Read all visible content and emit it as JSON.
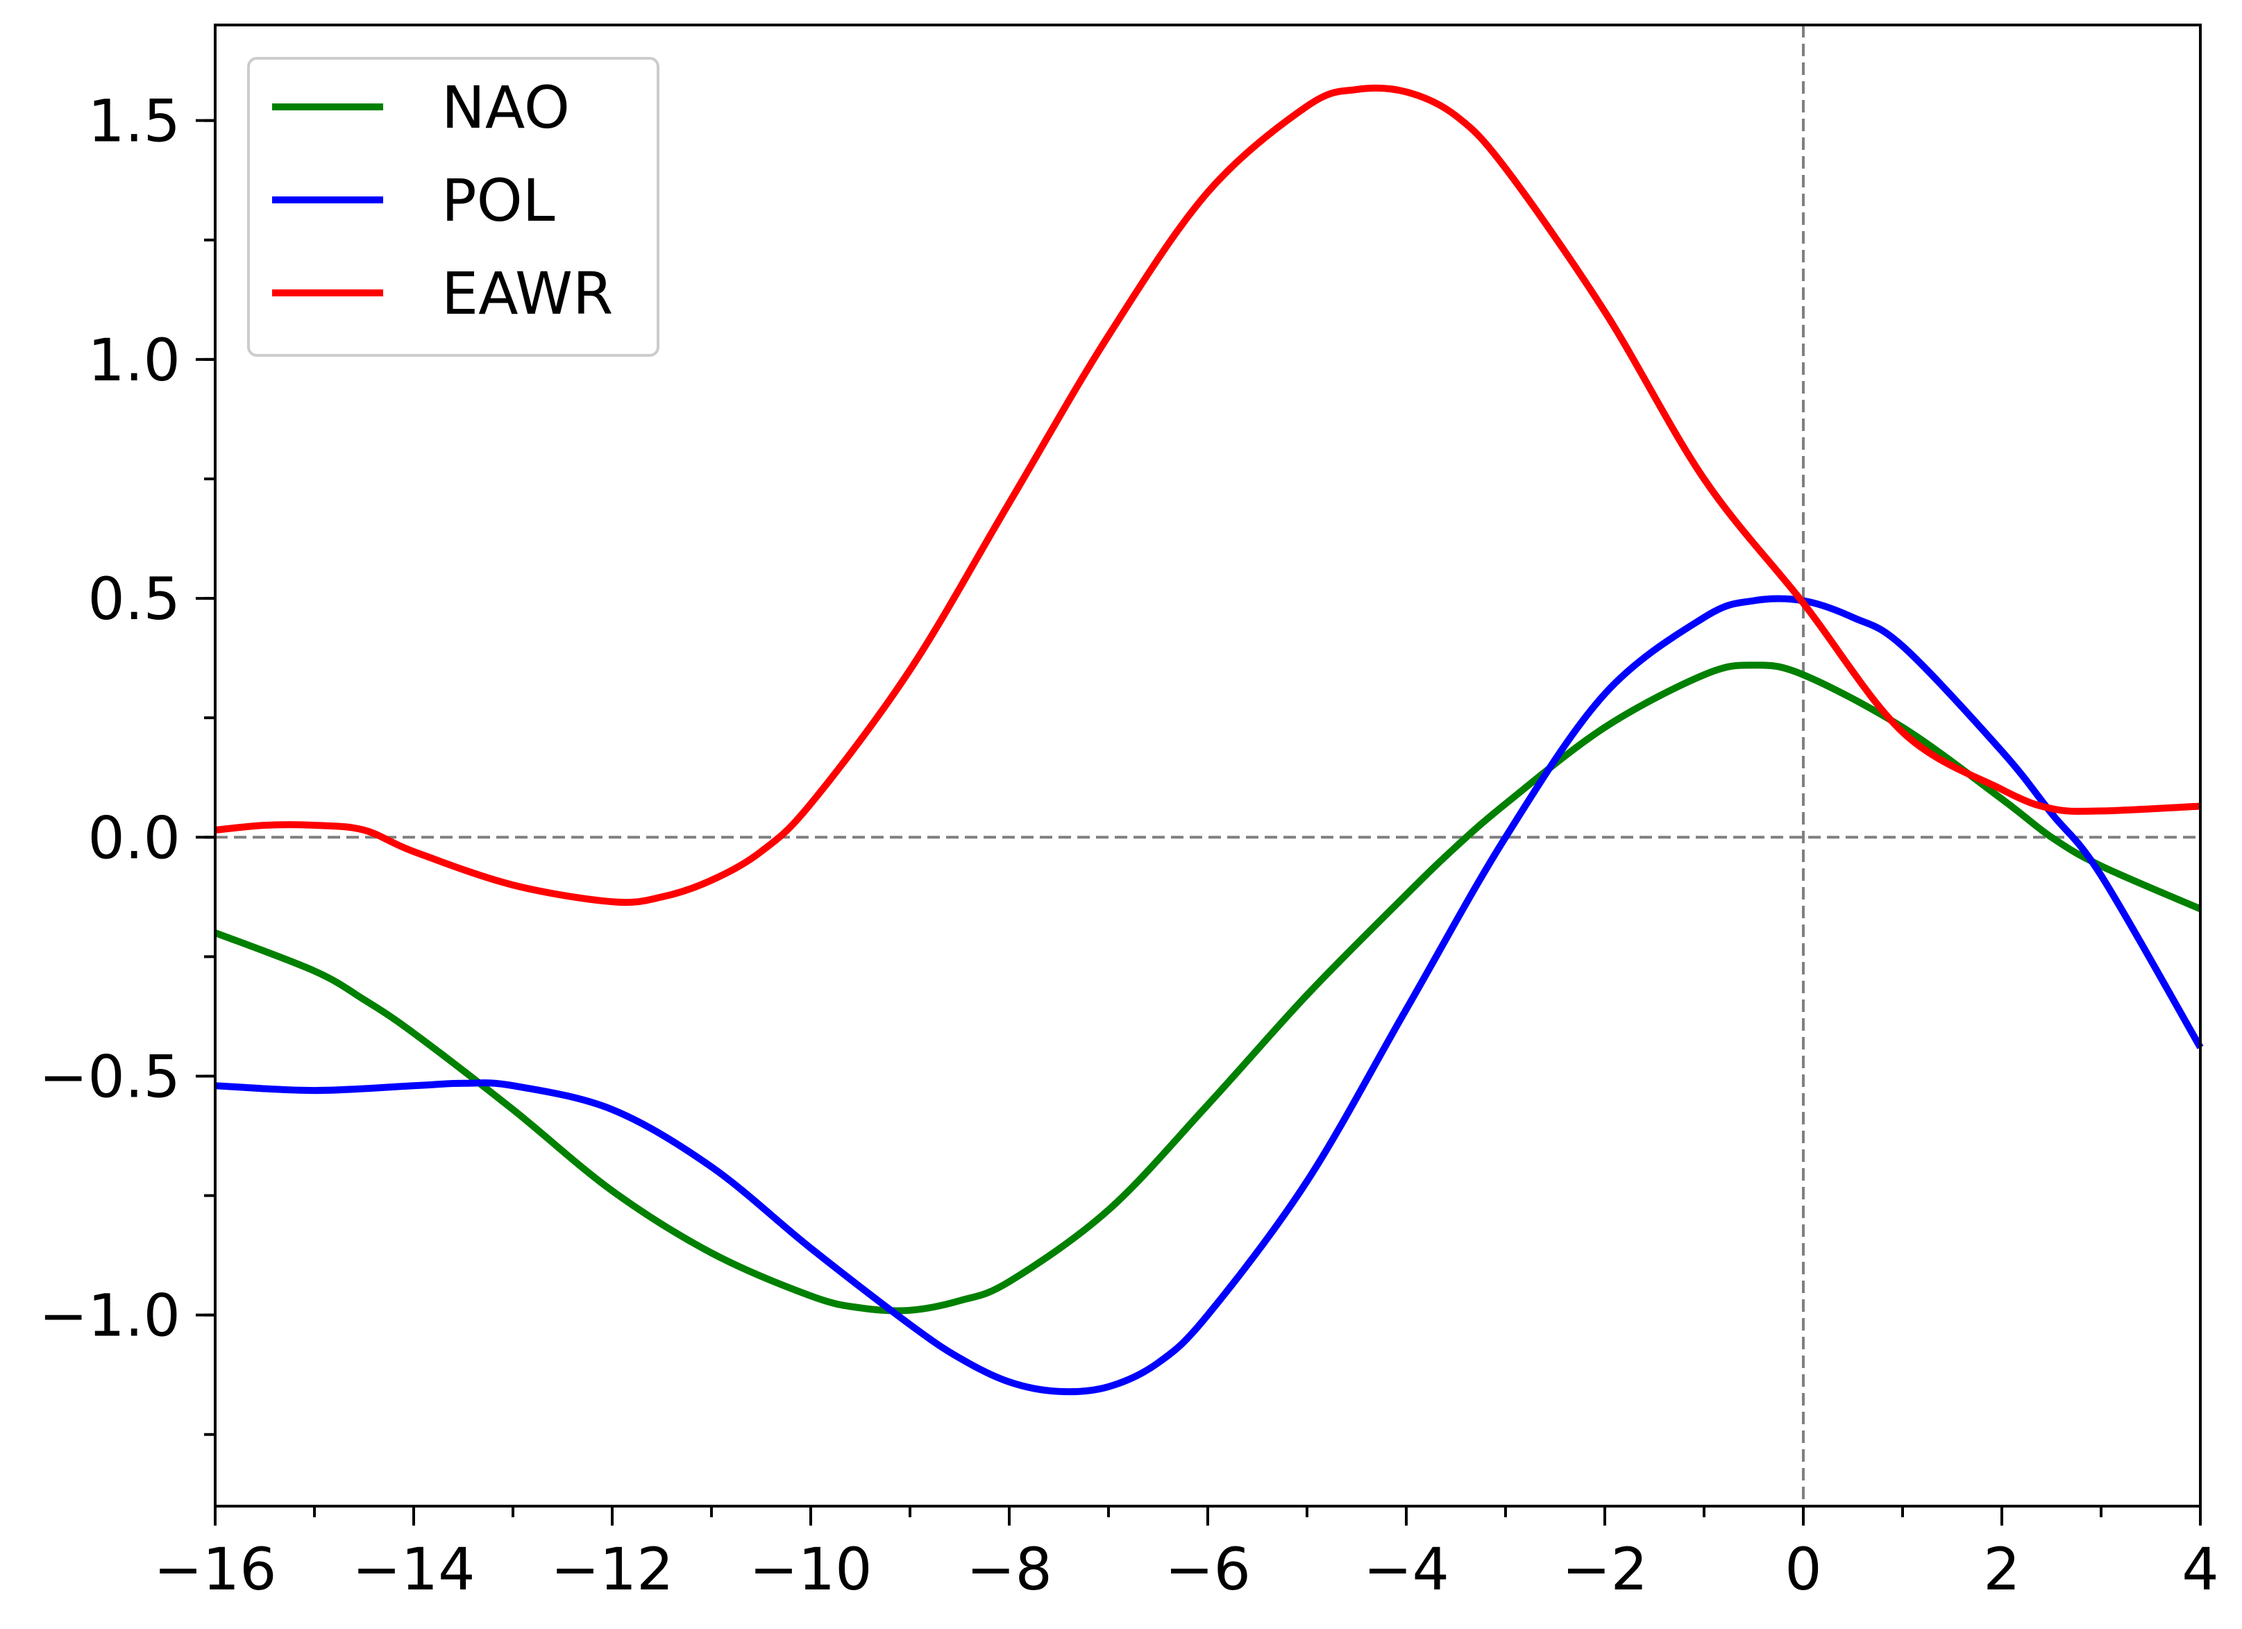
{
  "chart_data": {
    "type": "line",
    "title": "",
    "xlabel": "",
    "ylabel": "",
    "xlim": [
      -16,
      4
    ],
    "ylim": [
      -1.4,
      1.7
    ],
    "x_ticks": [
      -16,
      -14,
      -12,
      -10,
      -8,
      -6,
      -4,
      -2,
      0,
      2,
      4
    ],
    "x_tick_labels": [
      "−16",
      "−14",
      "−12",
      "−10",
      "−8",
      "−6",
      "−4",
      "−2",
      "0",
      "2",
      "4"
    ],
    "y_ticks": [
      -1.0,
      -0.5,
      0.0,
      0.5,
      1.0,
      1.5
    ],
    "y_tick_labels": [
      "−1.0",
      "−0.5",
      "0.0",
      "0.5",
      "1.0",
      "1.5"
    ],
    "x_minor_step": 1,
    "y_minor_step": 0.25,
    "grid": false,
    "legend_position": "top-left",
    "reference_lines": [
      {
        "orientation": "horizontal",
        "value": 0.0,
        "style": "dashed",
        "color": "#808080"
      },
      {
        "orientation": "vertical",
        "value": 0,
        "style": "dashed",
        "color": "#808080"
      }
    ],
    "series": [
      {
        "name": "NAO",
        "color": "#008000",
        "x": [
          -16,
          -15,
          -14.5,
          -14,
          -13,
          -12,
          -11,
          -10,
          -9.5,
          -9,
          -8.5,
          -8,
          -7,
          -6,
          -5,
          -4,
          -3.5,
          -3,
          -2,
          -1,
          -0.5,
          0,
          1,
          2,
          2.5,
          3,
          4
        ],
        "y": [
          -0.2,
          -0.28,
          -0.34,
          -0.41,
          -0.57,
          -0.74,
          -0.87,
          -0.96,
          -0.985,
          -0.99,
          -0.97,
          -0.93,
          -0.78,
          -0.56,
          -0.33,
          -0.12,
          -0.02,
          0.07,
          0.23,
          0.34,
          0.36,
          0.34,
          0.23,
          0.08,
          0.0,
          -0.06,
          -0.15
        ]
      },
      {
        "name": "POL",
        "color": "#0000ff",
        "x": [
          -16,
          -15,
          -14,
          -13.5,
          -13,
          -12,
          -11,
          -10,
          -9,
          -8.5,
          -8,
          -7.5,
          -7,
          -6.5,
          -6,
          -5,
          -4,
          -3,
          -2,
          -1,
          -0.5,
          0,
          0.5,
          1,
          2,
          2.5,
          3,
          4
        ],
        "y": [
          -0.52,
          -0.53,
          -0.52,
          -0.515,
          -0.52,
          -0.57,
          -0.69,
          -0.86,
          -1.02,
          -1.09,
          -1.14,
          -1.16,
          -1.15,
          -1.1,
          -1.0,
          -0.72,
          -0.36,
          0.0,
          0.3,
          0.46,
          0.495,
          0.495,
          0.46,
          0.4,
          0.18,
          0.05,
          -0.08,
          -0.44
        ]
      },
      {
        "name": "EAWR",
        "color": "#ff0000",
        "x": [
          -16,
          -15.5,
          -15,
          -14.5,
          -14,
          -13,
          -12,
          -11.5,
          -11,
          -10.5,
          -10,
          -9,
          -8,
          -7,
          -6,
          -5,
          -4.5,
          -4,
          -3.5,
          -3,
          -2,
          -1,
          0,
          1,
          2,
          2.5,
          3,
          4
        ],
        "y": [
          0.015,
          0.025,
          0.025,
          0.015,
          -0.03,
          -0.1,
          -0.135,
          -0.125,
          -0.09,
          -0.03,
          0.07,
          0.35,
          0.7,
          1.05,
          1.35,
          1.53,
          1.565,
          1.56,
          1.51,
          1.4,
          1.1,
          0.75,
          0.49,
          0.22,
          0.1,
          0.06,
          0.055,
          0.065
        ]
      }
    ]
  }
}
